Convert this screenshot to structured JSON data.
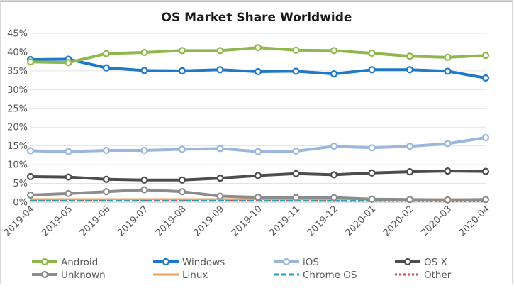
{
  "chart_data": {
    "type": "line",
    "title": "OS Market Share Worldwide",
    "xlabel": "",
    "ylabel": "",
    "x": [
      "2019-04",
      "2019-05",
      "2019-06",
      "2019-07",
      "2019-08",
      "2019-09",
      "2019-10",
      "2019-11",
      "2019-12",
      "2020-01",
      "2020-02",
      "2020-03",
      "2020-04"
    ],
    "ylim": [
      0,
      45
    ],
    "yticks": [
      "0%",
      "5%",
      "10%",
      "15%",
      "20%",
      "25%",
      "30%",
      "35%",
      "40%",
      "45%"
    ],
    "grid": true,
    "legend_position": "bottom",
    "series": [
      {
        "name": "Android",
        "color": "#8fb84c",
        "style": "solid",
        "markers": true,
        "values": [
          37.4,
          37.2,
          39.6,
          39.9,
          40.4,
          40.4,
          41.2,
          40.5,
          40.4,
          39.7,
          38.9,
          38.6,
          39.1
        ]
      },
      {
        "name": "Windows",
        "color": "#1f78c8",
        "style": "solid",
        "markers": true,
        "values": [
          38.0,
          38.1,
          35.8,
          35.1,
          35.0,
          35.3,
          34.8,
          34.9,
          34.2,
          35.3,
          35.3,
          34.9,
          33.1
        ]
      },
      {
        "name": "iOS",
        "color": "#9bb7dc",
        "style": "solid",
        "markers": true,
        "values": [
          13.7,
          13.5,
          13.8,
          13.8,
          14.1,
          14.3,
          13.5,
          13.6,
          14.9,
          14.5,
          14.9,
          15.6,
          17.2
        ]
      },
      {
        "name": "OS X",
        "color": "#4d4d4d",
        "style": "solid",
        "markers": true,
        "values": [
          6.8,
          6.7,
          6.1,
          5.9,
          5.9,
          6.4,
          7.1,
          7.6,
          7.3,
          7.8,
          8.1,
          8.3,
          8.2
        ]
      },
      {
        "name": "Unknown",
        "color": "#8c8c8c",
        "style": "solid",
        "markers": true,
        "values": [
          1.9,
          2.3,
          2.8,
          3.3,
          2.8,
          1.6,
          1.3,
          1.2,
          1.2,
          0.8,
          0.7,
          0.6,
          0.7
        ]
      },
      {
        "name": "Linux",
        "color": "#f0a050",
        "style": "solid",
        "markers": false,
        "values": [
          0.8,
          0.8,
          0.8,
          0.8,
          0.8,
          0.8,
          0.8,
          0.8,
          0.8,
          0.8,
          0.8,
          0.8,
          0.8
        ]
      },
      {
        "name": "Chrome OS",
        "color": "#2aa0b8",
        "style": "dashed",
        "markers": false,
        "values": [
          0.4,
          0.4,
          0.4,
          0.4,
          0.4,
          0.4,
          0.4,
          0.4,
          0.4,
          0.4,
          0.4,
          0.4,
          0.4
        ]
      },
      {
        "name": "Other",
        "color": "#c0504d",
        "style": "dotted",
        "markers": false,
        "values": [
          0.6,
          0.6,
          0.6,
          0.6,
          0.5,
          0.5,
          0.5,
          0.5,
          0.4,
          0.4,
          0.4,
          0.3,
          0.3
        ]
      }
    ]
  }
}
